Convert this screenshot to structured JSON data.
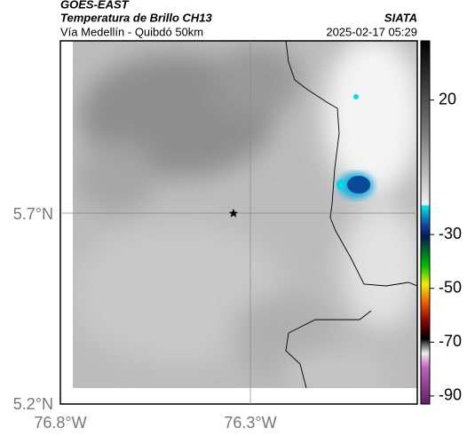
{
  "header": {
    "source": "GOES-EAST",
    "title": "Temperatura de Brillo CH13",
    "subtitle": "Vía Medellín - Quibdó 50km",
    "agency": "SIATA",
    "timestamp": "2025-02-17 05:29"
  },
  "map": {
    "lat_labels": [
      "5.7°N",
      "5.2°N"
    ],
    "lon_labels": [
      "76.8°W",
      "76.3°W"
    ]
  },
  "colorbar": {
    "lim": [
      42,
      -93
    ],
    "ticks": [
      20,
      -30,
      -50,
      -70,
      -90
    ]
  }
}
